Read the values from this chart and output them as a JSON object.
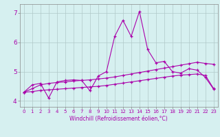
{
  "xlabel": "Windchill (Refroidissement éolien,°C)",
  "bg_color": "#d6f0f0",
  "line_color": "#aa00aa",
  "grid_color": "#b0c8c8",
  "ylim": [
    3.8,
    7.3
  ],
  "xlim": [
    -0.5,
    23.5
  ],
  "x": [
    0,
    1,
    2,
    3,
    4,
    5,
    6,
    7,
    8,
    9,
    10,
    11,
    12,
    13,
    14,
    15,
    16,
    17,
    18,
    19,
    20,
    21,
    22,
    23
  ],
  "line1": [
    4.3,
    4.55,
    4.6,
    4.1,
    4.65,
    4.7,
    4.72,
    4.7,
    4.35,
    4.85,
    5.0,
    6.2,
    6.75,
    6.2,
    7.05,
    5.75,
    5.3,
    5.35,
    5.0,
    4.95,
    5.1,
    5.05,
    4.8,
    4.4
  ],
  "line2": [
    4.3,
    4.42,
    4.55,
    4.6,
    4.63,
    4.65,
    4.68,
    4.7,
    4.72,
    4.75,
    4.78,
    4.82,
    4.87,
    4.92,
    4.97,
    5.02,
    5.07,
    5.12,
    5.17,
    5.22,
    5.27,
    5.32,
    5.28,
    5.25
  ],
  "line3": [
    4.3,
    4.32,
    4.36,
    4.38,
    4.4,
    4.42,
    4.44,
    4.46,
    4.48,
    4.5,
    4.53,
    4.57,
    4.61,
    4.65,
    4.69,
    4.73,
    4.77,
    4.81,
    4.85,
    4.88,
    4.9,
    4.92,
    4.87,
    4.42
  ],
  "yticks": [
    4,
    5,
    6,
    7
  ],
  "xticks": [
    0,
    1,
    2,
    3,
    4,
    5,
    6,
    7,
    8,
    9,
    10,
    11,
    12,
    13,
    14,
    15,
    16,
    17,
    18,
    19,
    20,
    21,
    22,
    23
  ]
}
